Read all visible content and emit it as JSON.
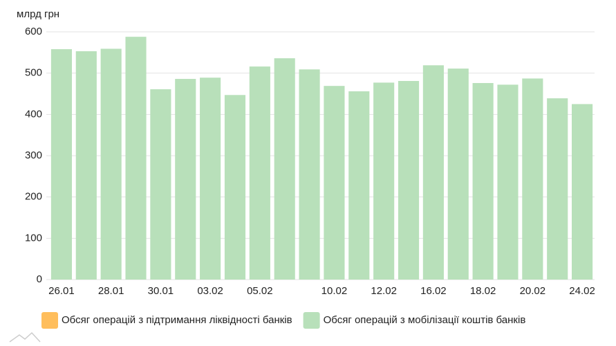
{
  "chart_data": {
    "type": "bar",
    "y_label": "млрд грн",
    "categories": [
      "26.01",
      null,
      "28.01",
      null,
      "30.01",
      null,
      "03.02",
      null,
      "05.02",
      null,
      null,
      "10.02",
      null,
      "12.02",
      null,
      "16.02",
      null,
      "18.02",
      null,
      "20.02",
      null,
      "24.02"
    ],
    "series": [
      {
        "name": "Обсяг операцій з підтримання ліквідності банків",
        "color": "#ffbe5c",
        "values": [
          null,
          null,
          null,
          null,
          null,
          null,
          null,
          null,
          null,
          null,
          null,
          null,
          null,
          null,
          null,
          null,
          null,
          null,
          null,
          null,
          null,
          null
        ]
      },
      {
        "name": "Обсяг операцій з мобілізації коштів банків",
        "color": "#b8e0ba",
        "values": [
          558,
          553,
          559,
          588,
          461,
          486,
          489,
          447,
          516,
          536,
          509,
          469,
          456,
          477,
          481,
          519,
          511,
          476,
          472,
          487,
          439,
          425
        ]
      }
    ],
    "ylim": [
      0,
      600
    ],
    "yticks": [
      0,
      100,
      200,
      300,
      400,
      500,
      600
    ],
    "grid": true
  }
}
